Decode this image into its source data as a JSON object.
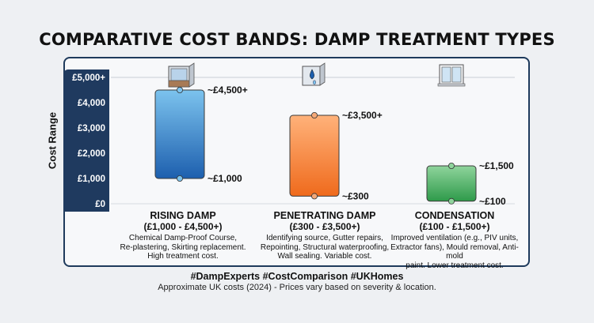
{
  "title": "COMPARATIVE COST BANDS: DAMP TREATMENT TYPES",
  "hashtags": "#DampExperts #CostComparison #UKHomes",
  "footnote": "Approximate UK costs (2024) - Prices vary based on severity & location.",
  "chart_data": {
    "type": "bar",
    "ylabel": "Cost Range",
    "ylim": [
      0,
      5000
    ],
    "y_ticks": [
      {
        "value": 0,
        "label": "£0"
      },
      {
        "value": 1000,
        "label": "£1,000"
      },
      {
        "value": 2000,
        "label": "£2,000"
      },
      {
        "value": 3000,
        "label": "£3,000"
      },
      {
        "value": 4000,
        "label": "£4,000"
      },
      {
        "value": 5000,
        "label": "£5,000+"
      }
    ],
    "categories": [
      {
        "name": "RISING DAMP",
        "range_label": "(£1,000 - £4,500+)",
        "low": 1000,
        "high": 4500,
        "low_label": "~£1,000",
        "high_label": "~£4,500+",
        "description": [
          "Chemical Damp-Proof Course,",
          "Re-plastering, Skirting replacement.",
          "High treatment cost."
        ],
        "color_top": "#7cc3ee",
        "color_bottom": "#1d5fae",
        "icon": "wall-icon"
      },
      {
        "name": "PENETRATING DAMP",
        "range_label": "(£300 - £3,500+)",
        "low": 300,
        "high": 3500,
        "low_label": "~£300",
        "high_label": "~£3,500+",
        "description": [
          "Identifying source, Gutter repairs,",
          "Repointing, Structural waterproofing,",
          "Wall sealing. Variable cost."
        ],
        "color_top": "#ffb27a",
        "color_bottom": "#ef6a1c",
        "icon": "water-drop-icon"
      },
      {
        "name": "CONDENSATION",
        "range_label": "(£100 - £1,500+)",
        "low": 100,
        "high": 1500,
        "low_label": "~£100",
        "high_label": "~£1,500",
        "description": [
          "Improved ventilation (e.g., PIV units,",
          "Extractor fans), Mould removal, Anti-mold",
          "paint. Lower treatment cost."
        ],
        "color_top": "#8fd49c",
        "color_bottom": "#2e9a4a",
        "icon": "window-icon"
      }
    ]
  }
}
